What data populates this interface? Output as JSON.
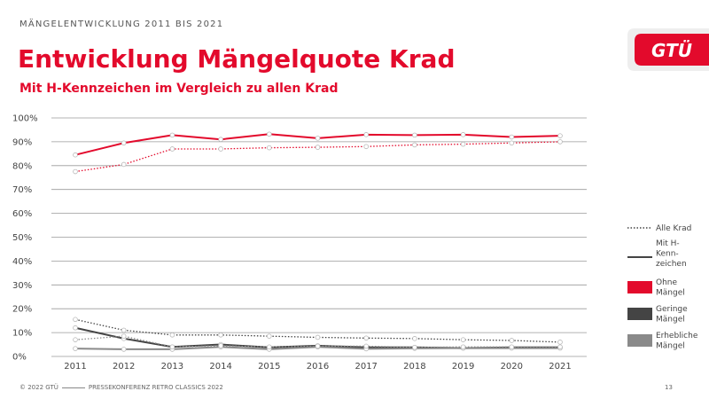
{
  "header": {
    "kicker": "MÄNGELENTWICKLUNG 2011 BIS 2021",
    "title": "Entwicklung Mängelquote Krad",
    "subtitle": "Mit H-Kennzeichen im Vergleich zu allen Krad",
    "logo_text": "GTÜ"
  },
  "footer": {
    "copyright": "© 2022 GTÜ",
    "event": "PRESSEKONFERENZ RETRO CLASSICS 2022",
    "page": "13"
  },
  "colors": {
    "brand": "#e30a2c",
    "geringe": "#444444",
    "erhebliche": "#8a8a8a",
    "grid": "#9a9a9a"
  },
  "chart_data": {
    "type": "line",
    "title": "Entwicklung Mängelquote Krad",
    "subtitle": "Mit H-Kennzeichen im Vergleich zu allen Krad",
    "xlabel": "",
    "ylabel": "",
    "x": [
      "2011",
      "2012",
      "2013",
      "2014",
      "2015",
      "2016",
      "2017",
      "2018",
      "2019",
      "2020",
      "2021"
    ],
    "ylim": [
      0,
      100
    ],
    "yticks": [
      0,
      10,
      20,
      30,
      40,
      50,
      60,
      70,
      80,
      90,
      100
    ],
    "ytick_labels": [
      "0%",
      "10%",
      "20%",
      "30%",
      "40%",
      "50%",
      "60%",
      "70%",
      "80%",
      "90%",
      "100%"
    ],
    "grid": true,
    "legend_position": "right",
    "legend": {
      "line_styles": [
        {
          "label": "Alle Krad",
          "style": "dotted"
        },
        {
          "label": "Mit H-\nKenn-\nzeichen",
          "style": "solid"
        }
      ],
      "categories": [
        {
          "label": "Ohne\nMängel",
          "color": "#e30a2c"
        },
        {
          "label": "Geringe\nMängel",
          "color": "#444444"
        },
        {
          "label": "Erhebliche\nMängel",
          "color": "#8a8a8a"
        }
      ]
    },
    "series": [
      {
        "category": "Ohne Mängel",
        "group": "Mit H-Kennzeichen",
        "style": "solid",
        "color": "#e30a2c",
        "values": [
          84.5,
          89.5,
          92.8,
          91.0,
          93.2,
          91.5,
          93.0,
          92.8,
          93.0,
          92.0,
          92.5
        ]
      },
      {
        "category": "Ohne Mängel",
        "group": "Alle Krad",
        "style": "dotted",
        "color": "#e30a2c",
        "values": [
          77.5,
          80.5,
          87.0,
          87.0,
          87.5,
          87.7,
          88.0,
          88.7,
          89.0,
          89.5,
          90.0
        ]
      },
      {
        "category": "Geringe Mängel",
        "group": "Mit H-Kennzeichen",
        "style": "solid",
        "color": "#444444",
        "values": [
          12.0,
          7.5,
          4.0,
          5.0,
          3.8,
          4.5,
          3.8,
          3.8,
          3.5,
          3.8,
          3.8
        ]
      },
      {
        "category": "Geringe Mängel",
        "group": "Alle Krad",
        "style": "dotted",
        "color": "#444444",
        "values": [
          15.5,
          11.0,
          9.0,
          9.0,
          8.5,
          8.0,
          7.7,
          7.5,
          7.0,
          6.7,
          6.0
        ]
      },
      {
        "category": "Erhebliche Mängel",
        "group": "Mit H-Kennzeichen",
        "style": "solid",
        "color": "#8a8a8a",
        "values": [
          3.3,
          3.0,
          3.0,
          4.0,
          3.0,
          4.0,
          3.2,
          3.4,
          3.5,
          3.5,
          3.5
        ]
      },
      {
        "category": "Erhebliche Mängel",
        "group": "Alle Krad",
        "style": "dotted",
        "color": "#8a8a8a",
        "values": [
          7.0,
          8.5,
          4.0,
          4.5,
          4.0,
          4.3,
          4.3,
          3.8,
          4.0,
          4.0,
          4.0
        ]
      }
    ]
  }
}
